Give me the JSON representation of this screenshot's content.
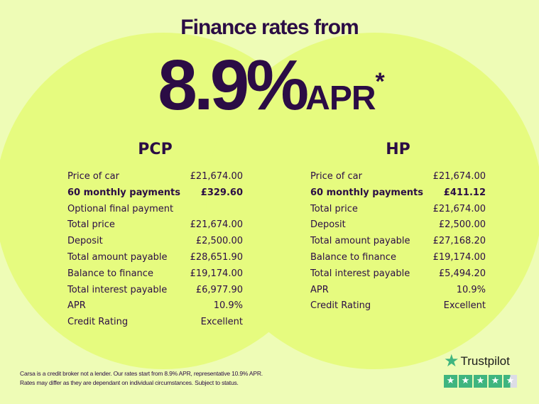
{
  "header": {
    "title": "Finance rates from",
    "rate": "8.9%",
    "apr": "APR",
    "asterisk": "*"
  },
  "pcp": {
    "title": "PCP",
    "rows": [
      {
        "label": "Price of car",
        "value": "£21,674.00",
        "bold": false
      },
      {
        "label": "60 monthly payments",
        "value": "£329.60",
        "bold": true
      },
      {
        "label": "Optional final payment",
        "value": "",
        "bold": false
      },
      {
        "label": "Total price",
        "value": "£21,674.00",
        "bold": false
      },
      {
        "label": "Deposit",
        "value": "£2,500.00",
        "bold": false
      },
      {
        "label": "Total amount payable",
        "value": "£28,651.90",
        "bold": false
      },
      {
        "label": "Balance to finance",
        "value": "£19,174.00",
        "bold": false
      },
      {
        "label": "Total interest payable",
        "value": "£6,977.90",
        "bold": false
      },
      {
        "label": "APR",
        "value": "10.9%",
        "bold": false
      },
      {
        "label": "Credit Rating",
        "value": "Excellent",
        "bold": false
      }
    ]
  },
  "hp": {
    "title": "HP",
    "rows": [
      {
        "label": "Price of car",
        "value": "£21,674.00",
        "bold": false
      },
      {
        "label": "60 monthly payments",
        "value": "£411.12",
        "bold": true
      },
      {
        "label": "Total price",
        "value": "£21,674.00",
        "bold": false
      },
      {
        "label": "Deposit",
        "value": "£2,500.00",
        "bold": false
      },
      {
        "label": "Total amount payable",
        "value": "£27,168.20",
        "bold": false
      },
      {
        "label": "Balance to finance",
        "value": "£19,174.00",
        "bold": false
      },
      {
        "label": "Total interest payable",
        "value": "£5,494.20",
        "bold": false
      },
      {
        "label": "APR",
        "value": "10.9%",
        "bold": false
      },
      {
        "label": "Credit Rating",
        "value": "Excellent",
        "bold": false
      }
    ]
  },
  "disclaimer": {
    "line1": "Carsa is a credit broker not a lender. Our rates start from 8.9% APR, representative 10.9% APR.",
    "line2": "Rates may differ as they are dependant on individual circumstances. Subject to status."
  },
  "trustpilot": {
    "name": "Trustpilot",
    "rating_stars": 4.5,
    "color": "#3fb57f"
  },
  "colors": {
    "text": "#2b0c45",
    "background": "#eefcb6",
    "circle": "#e6fb7f"
  }
}
